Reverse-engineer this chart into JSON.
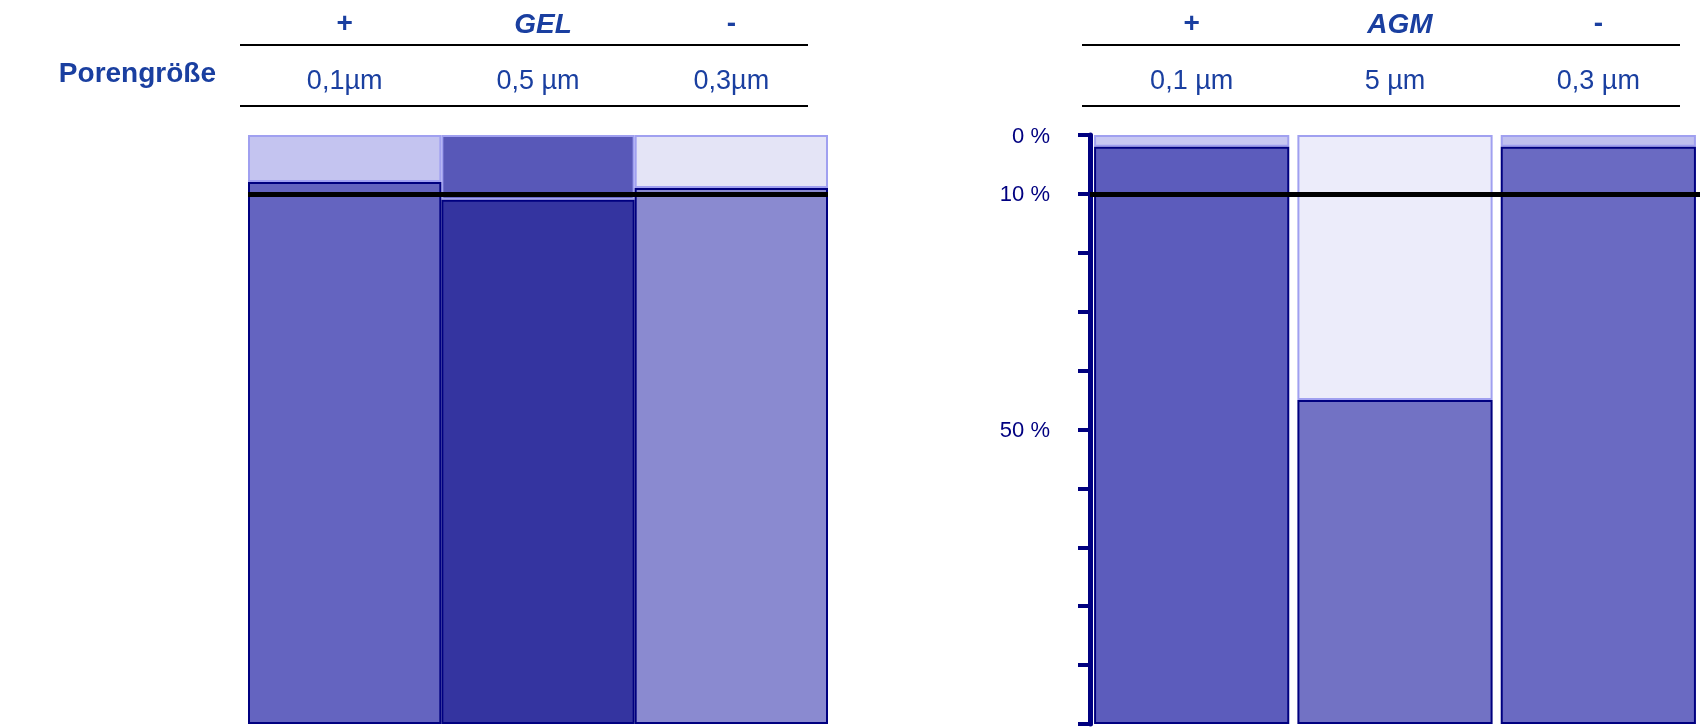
{
  "chart_data": [
    {
      "type": "bar",
      "title": "GEL",
      "xlabel": "Porengröße",
      "annotations": [
        "+",
        "-"
      ],
      "categories": [
        "0,1µm",
        "0,5 µm",
        "0,3µm"
      ],
      "stacked": true,
      "series": [
        {
          "colors": [
            "#c4c4f0",
            "#5858b8",
            "#e4e4f6"
          ],
          "values": [
            8,
            11,
            9
          ]
        },
        {
          "colors": [
            "#6464c0",
            "#3434a0",
            "#8a8ad0"
          ],
          "values": [
            92,
            89,
            91
          ]
        }
      ],
      "ylim": [
        100,
        0
      ],
      "ref_lines": [
        {
          "axis": "y",
          "value": 10,
          "color": "#000000"
        }
      ],
      "tick_labels": "x"
    },
    {
      "type": "bar",
      "title": "AGM",
      "annotations": [
        "+",
        "-"
      ],
      "categories": [
        "0,1 µm",
        "5 µm",
        "0,3 µm"
      ],
      "stacked": true,
      "series": [
        {
          "colors": [
            "#c8c8f2",
            "#ececfa",
            "#c0c0ee"
          ],
          "values": [
            2,
            45,
            2
          ]
        },
        {
          "colors": [
            "#5c5cbc",
            "#7272c4",
            "#6a6ac2"
          ],
          "values": [
            98,
            55,
            98
          ]
        }
      ],
      "ylim": [
        100,
        0
      ],
      "yticks": [
        {
          "value": 0,
          "label": "0 %"
        },
        {
          "value": 10,
          "label": "10 %"
        },
        {
          "value": 20,
          "label": null
        },
        {
          "value": 30,
          "label": null
        },
        {
          "value": 40,
          "label": null
        },
        {
          "value": 50,
          "label": "50 %"
        },
        {
          "value": 60,
          "label": null
        },
        {
          "value": 70,
          "label": null
        },
        {
          "value": 80,
          "label": null
        },
        {
          "value": 90,
          "label": null
        },
        {
          "value": 100,
          "label": null
        }
      ],
      "ref_lines": [
        {
          "axis": "y",
          "value": 10,
          "color": "#000000"
        }
      ]
    }
  ]
}
